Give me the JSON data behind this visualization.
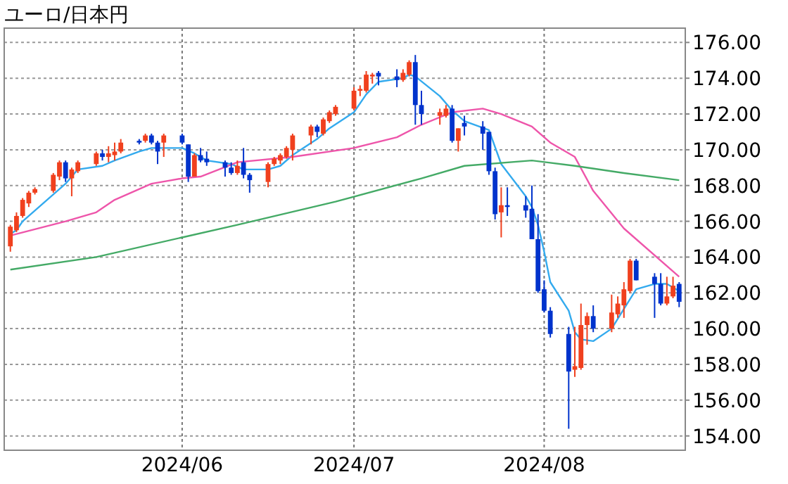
{
  "chart_data": {
    "type": "candlestick",
    "title": "ユーロ/日本円",
    "x": [
      "2024-05-06",
      "2024-05-07",
      "2024-05-08",
      "2024-05-09",
      "2024-05-10",
      "2024-05-13",
      "2024-05-14",
      "2024-05-15",
      "2024-05-16",
      "2024-05-17",
      "2024-05-20",
      "2024-05-21",
      "2024-05-22",
      "2024-05-23",
      "2024-05-24",
      "2024-05-27",
      "2024-05-28",
      "2024-05-29",
      "2024-05-30",
      "2024-05-31",
      "2024-06-03",
      "2024-06-04",
      "2024-06-05",
      "2024-06-06",
      "2024-06-07",
      "2024-06-10",
      "2024-06-11",
      "2024-06-12",
      "2024-06-13",
      "2024-06-14",
      "2024-06-17",
      "2024-06-18",
      "2024-06-19",
      "2024-06-20",
      "2024-06-21",
      "2024-06-24",
      "2024-06-25",
      "2024-06-26",
      "2024-06-27",
      "2024-06-28",
      "2024-07-01",
      "2024-07-02",
      "2024-07-03",
      "2024-07-04",
      "2024-07-05",
      "2024-07-08",
      "2024-07-09",
      "2024-07-10",
      "2024-07-11",
      "2024-07-12",
      "2024-07-15",
      "2024-07-16",
      "2024-07-17",
      "2024-07-18",
      "2024-07-19",
      "2024-07-22",
      "2024-07-23",
      "2024-07-24",
      "2024-07-25",
      "2024-07-26",
      "2024-07-29",
      "2024-07-30",
      "2024-07-31",
      "2024-08-01",
      "2024-08-02",
      "2024-08-05",
      "2024-08-06",
      "2024-08-07",
      "2024-08-08",
      "2024-08-09",
      "2024-08-12",
      "2024-08-13",
      "2024-08-14",
      "2024-08-15",
      "2024-08-16",
      "2024-08-19",
      "2024-08-20",
      "2024-08-21",
      "2024-08-22",
      "2024-08-23"
    ],
    "ohlc": [
      [
        164.6,
        165.8,
        164.3,
        165.7
      ],
      [
        165.5,
        166.5,
        165.4,
        166.3
      ],
      [
        166.3,
        167.3,
        166.2,
        167.2
      ],
      [
        167.0,
        167.7,
        166.8,
        167.6
      ],
      [
        167.6,
        167.9,
        167.5,
        167.8
      ],
      [
        167.7,
        168.7,
        167.6,
        168.6
      ],
      [
        168.5,
        169.4,
        168.3,
        169.3
      ],
      [
        169.3,
        169.4,
        168.2,
        168.4
      ],
      [
        168.4,
        169.0,
        167.4,
        168.9
      ],
      [
        168.8,
        169.4,
        168.7,
        169.3
      ],
      [
        169.2,
        169.9,
        169.1,
        169.8
      ],
      [
        169.8,
        170.0,
        169.4,
        169.6
      ],
      [
        169.6,
        170.2,
        169.3,
        169.8
      ],
      [
        169.7,
        170.4,
        169.4,
        169.9
      ],
      [
        169.9,
        170.6,
        169.8,
        170.4
      ],
      [
        170.5,
        170.6,
        170.3,
        170.4
      ],
      [
        170.5,
        170.9,
        170.4,
        170.8
      ],
      [
        170.8,
        170.9,
        170.3,
        170.4
      ],
      [
        170.4,
        170.5,
        169.2,
        169.9
      ],
      [
        170.4,
        170.9,
        169.6,
        170.8
      ],
      [
        170.8,
        170.9,
        170.3,
        170.4
      ],
      [
        170.3,
        170.3,
        168.2,
        168.5
      ],
      [
        168.5,
        169.8,
        168.5,
        169.7
      ],
      [
        169.7,
        170.1,
        169.3,
        169.4
      ],
      [
        169.5,
        169.9,
        169.1,
        169.3
      ],
      [
        169.3,
        169.4,
        168.5,
        169.0
      ],
      [
        169.0,
        169.3,
        168.6,
        168.7
      ],
      [
        168.7,
        169.4,
        168.6,
        169.1
      ],
      [
        169.3,
        170.1,
        168.4,
        168.6
      ],
      [
        168.6,
        168.7,
        167.6,
        168.3
      ],
      [
        168.2,
        169.3,
        167.9,
        169.2
      ],
      [
        169.2,
        169.6,
        169.1,
        169.5
      ],
      [
        169.4,
        169.8,
        169.2,
        169.7
      ],
      [
        169.6,
        170.2,
        169.5,
        170.1
      ],
      [
        170.0,
        170.9,
        169.4,
        170.8
      ],
      [
        170.8,
        171.4,
        170.3,
        171.3
      ],
      [
        171.3,
        171.4,
        170.7,
        171.0
      ],
      [
        170.9,
        171.8,
        170.8,
        171.7
      ],
      [
        171.6,
        172.2,
        171.5,
        172.1
      ],
      [
        172.0,
        172.5,
        171.9,
        172.4
      ],
      [
        172.3,
        173.5,
        172.2,
        173.3
      ],
      [
        173.3,
        173.6,
        173.0,
        173.4
      ],
      [
        173.3,
        174.4,
        173.2,
        174.2
      ],
      [
        174.1,
        174.3,
        173.7,
        174.2
      ],
      [
        174.3,
        174.4,
        173.6,
        174.1
      ],
      [
        174.1,
        174.5,
        173.5,
        173.9
      ],
      [
        173.9,
        174.5,
        173.8,
        174.3
      ],
      [
        174.2,
        175.0,
        174.1,
        174.9
      ],
      [
        174.9,
        175.3,
        171.4,
        172.5
      ],
      [
        172.5,
        173.3,
        171.4,
        172.0
      ],
      [
        171.9,
        172.3,
        171.4,
        172.1
      ],
      [
        171.9,
        172.5,
        171.8,
        172.3
      ],
      [
        172.3,
        172.5,
        170.4,
        170.5
      ],
      [
        170.5,
        171.2,
        169.9,
        171.2
      ],
      [
        171.5,
        171.9,
        170.8,
        171.3
      ],
      [
        171.3,
        171.6,
        170.0,
        170.9
      ],
      [
        171.0,
        171.0,
        168.6,
        168.8
      ],
      [
        168.8,
        169.0,
        166.1,
        166.4
      ],
      [
        166.5,
        167.9,
        165.1,
        166.9
      ],
      [
        166.9,
        167.9,
        166.3,
        166.8
      ],
      [
        166.9,
        167.4,
        166.2,
        166.6
      ],
      [
        166.7,
        168.0,
        165.0,
        165.0
      ],
      [
        165.0,
        166.4,
        162.0,
        162.1
      ],
      [
        162.2,
        162.7,
        160.9,
        161.0
      ],
      [
        161.0,
        161.2,
        159.5,
        159.7
      ],
      [
        159.7,
        160.1,
        154.4,
        157.6
      ],
      [
        157.7,
        160.1,
        157.3,
        157.9
      ],
      [
        157.8,
        161.4,
        157.7,
        160.2
      ],
      [
        160.2,
        160.9,
        159.1,
        160.7
      ],
      [
        160.7,
        161.3,
        159.8,
        160.0
      ],
      [
        160.0,
        161.9,
        159.8,
        160.9
      ],
      [
        160.8,
        161.8,
        160.6,
        161.4
      ],
      [
        161.3,
        162.6,
        160.6,
        162.2
      ],
      [
        162.1,
        163.9,
        162.0,
        163.8
      ],
      [
        163.8,
        163.9,
        162.7,
        162.7
      ],
      [
        162.9,
        163.1,
        160.6,
        162.5
      ],
      [
        162.5,
        163.1,
        161.3,
        161.4
      ],
      [
        161.4,
        162.9,
        161.3,
        161.8
      ],
      [
        161.8,
        162.9,
        161.7,
        162.4
      ],
      [
        162.5,
        162.6,
        161.2,
        161.5
      ]
    ],
    "colors": [
      "#f0401e",
      "#f0401e",
      "#f0401e",
      "#f0401e",
      "#f0401e",
      "#f0401e",
      "#f0401e",
      "#0033cc",
      "#f0401e",
      "#f0401e",
      "#f0401e",
      "#0033cc",
      "#f0401e",
      "#f0401e",
      "#f0401e",
      "#0033cc",
      "#f0401e",
      "#0033cc",
      "#0033cc",
      "#f0401e",
      "#0033cc",
      "#0033cc",
      "#f0401e",
      "#0033cc",
      "#0033cc",
      "#0033cc",
      "#0033cc",
      "#f0401e",
      "#0033cc",
      "#0033cc",
      "#f0401e",
      "#f0401e",
      "#f0401e",
      "#f0401e",
      "#f0401e",
      "#f0401e",
      "#0033cc",
      "#f0401e",
      "#f0401e",
      "#f0401e",
      "#f0401e",
      "#f0401e",
      "#f0401e",
      "#f0401e",
      "#0033cc",
      "#0033cc",
      "#f0401e",
      "#f0401e",
      "#0033cc",
      "#0033cc",
      "#f0401e",
      "#f0401e",
      "#0033cc",
      "#f0401e",
      "#0033cc",
      "#0033cc",
      "#0033cc",
      "#0033cc",
      "#f0401e",
      "#0033cc",
      "#0033cc",
      "#0033cc",
      "#0033cc",
      "#0033cc",
      "#0033cc",
      "#0033cc",
      "#f0401e",
      "#f0401e",
      "#f0401e",
      "#0033cc",
      "#f0401e",
      "#f0401e",
      "#f0401e",
      "#f0401e",
      "#0033cc",
      "#0033cc",
      "#0033cc",
      "#f0401e",
      "#f0401e",
      "#0033cc"
    ],
    "series": [
      {
        "type": "line",
        "color": "#33aaee",
        "x": [
          "2024-05-06",
          "2024-05-07",
          "2024-05-08",
          "2024-05-13",
          "2024-05-15",
          "2024-05-17",
          "2024-05-21",
          "2024-05-23",
          "2024-05-27",
          "2024-05-29",
          "2024-05-31",
          "2024-06-03",
          "2024-06-05",
          "2024-06-07",
          "2024-06-11",
          "2024-06-13",
          "2024-06-17",
          "2024-06-19",
          "2024-06-21",
          "2024-06-25",
          "2024-06-27",
          "2024-07-01",
          "2024-07-03",
          "2024-07-05",
          "2024-07-09",
          "2024-07-10",
          "2024-07-11",
          "2024-07-15",
          "2024-07-17",
          "2024-07-19",
          "2024-07-23",
          "2024-07-25",
          "2024-07-29",
          "2024-07-30",
          "2024-07-31",
          "2024-08-01",
          "2024-08-02",
          "2024-08-05",
          "2024-08-06",
          "2024-08-07",
          "2024-08-09",
          "2024-08-12",
          "2024-08-14",
          "2024-08-16",
          "2024-08-19",
          "2024-08-21",
          "2024-08-23"
        ],
        "values": [
          165.3,
          165.5,
          166.0,
          167.5,
          168.1,
          168.9,
          169.1,
          169.4,
          169.9,
          170.1,
          170.1,
          170.1,
          169.8,
          169.4,
          169.2,
          168.9,
          168.9,
          169.1,
          169.7,
          170.6,
          171.2,
          172.1,
          173.1,
          173.8,
          174.0,
          174.2,
          174.1,
          173.0,
          172.2,
          171.6,
          171.1,
          169.2,
          167.4,
          166.8,
          165.8,
          164.3,
          162.6,
          161.0,
          159.8,
          159.4,
          159.3,
          160.0,
          161.1,
          162.2,
          162.5,
          162.5,
          162.1
        ]
      },
      {
        "type": "line",
        "color": "#ee55aa",
        "x": [
          "2024-05-06",
          "2024-05-15",
          "2024-05-20",
          "2024-05-23",
          "2024-05-29",
          "2024-06-03",
          "2024-06-06",
          "2024-06-12",
          "2024-06-21",
          "2024-07-01",
          "2024-07-08",
          "2024-07-12",
          "2024-07-17",
          "2024-07-22",
          "2024-07-25",
          "2024-07-30",
          "2024-08-02",
          "2024-08-06",
          "2024-08-09",
          "2024-08-14",
          "2024-08-23"
        ],
        "values": [
          165.2,
          166.0,
          166.5,
          167.2,
          168.1,
          168.4,
          168.5,
          169.3,
          169.6,
          170.1,
          170.7,
          171.4,
          172.1,
          172.3,
          172.0,
          171.3,
          170.4,
          169.6,
          167.7,
          165.6,
          162.9
        ]
      },
      {
        "type": "line",
        "color": "#44aa66",
        "x": [
          "2024-05-06",
          "2024-05-20",
          "2024-06-03",
          "2024-06-12",
          "2024-06-28",
          "2024-07-12",
          "2024-07-19",
          "2024-07-30",
          "2024-08-06",
          "2024-08-14",
          "2024-08-23"
        ],
        "values": [
          163.3,
          164.0,
          165.1,
          165.8,
          167.1,
          168.4,
          169.1,
          169.4,
          169.1,
          168.7,
          168.3
        ]
      }
    ],
    "xlim": [
      "2024-05-05",
      "2024-08-24"
    ],
    "ylim": [
      153.2,
      176.8
    ],
    "xticks": [
      {
        "value": "2024-06-03",
        "label": "2024/06"
      },
      {
        "value": "2024-07-01",
        "label": "2024/07"
      },
      {
        "value": "2024-08-01",
        "label": "2024/08"
      }
    ],
    "yticks": [
      {
        "value": 154,
        "label": "154.00"
      },
      {
        "value": 156,
        "label": "156.00"
      },
      {
        "value": 158,
        "label": "158.00"
      },
      {
        "value": 160,
        "label": "160.00"
      },
      {
        "value": 162,
        "label": "162.00"
      },
      {
        "value": 164,
        "label": "164.00"
      },
      {
        "value": 166,
        "label": "166.00"
      },
      {
        "value": 168,
        "label": "168.00"
      },
      {
        "value": 170,
        "label": "170.00"
      },
      {
        "value": 172,
        "label": "172.00"
      },
      {
        "value": 174,
        "label": "174.00"
      },
      {
        "value": 176,
        "label": "176.00"
      }
    ],
    "grid": true
  }
}
